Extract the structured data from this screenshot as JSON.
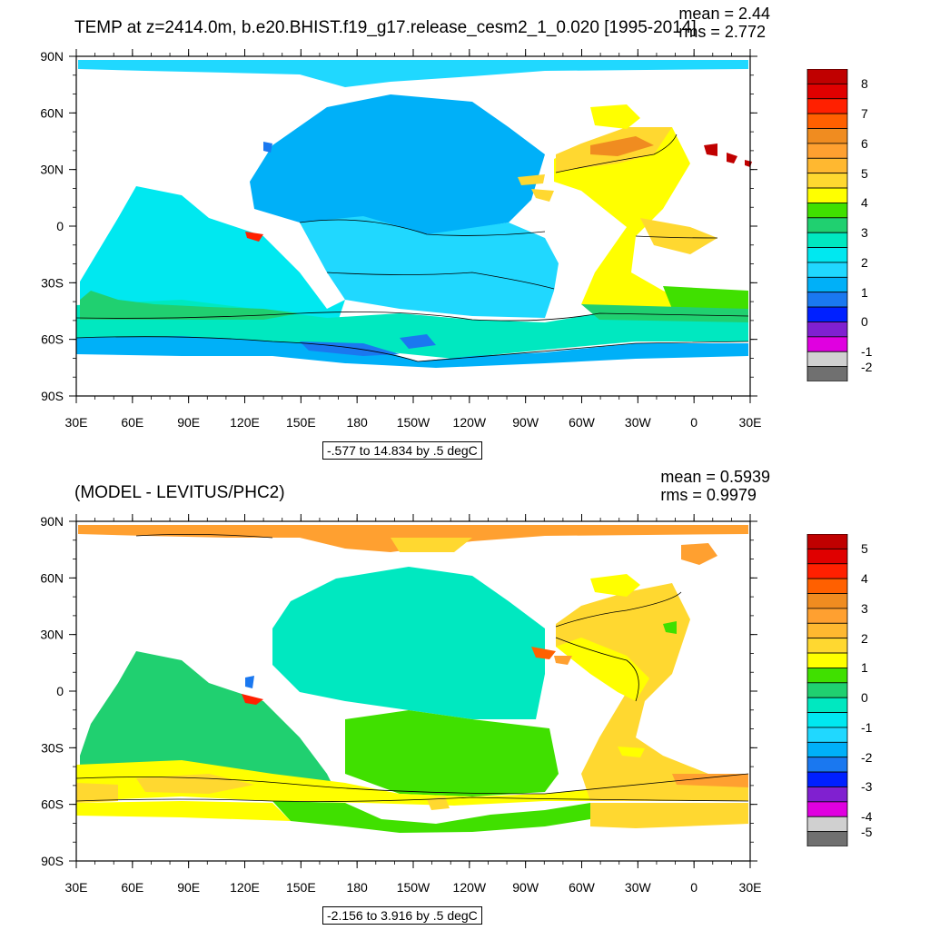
{
  "panels": [
    {
      "title": "TEMP at z=2414.0m, b.e20.BHIST.f19_g17.release_cesm2_1_0.020 [1995-2014]",
      "mean_text": "mean = 2.44",
      "rms_text": "rms = 2.772",
      "range_text": "-.577 to 14.834 by .5 degC",
      "colorbar_labels": [
        "8",
        "7",
        "6",
        "5",
        "4",
        "3",
        "2",
        "1",
        "0",
        "-1",
        "-2"
      ]
    },
    {
      "title": "(MODEL - LEVITUS/PHC2)",
      "mean_text": "mean = 0.5939",
      "rms_text": "rms = 0.9979",
      "range_text": "-2.156 to 3.916 by .5 degC",
      "colorbar_labels": [
        "5",
        "4",
        "3",
        "2",
        "1",
        "0",
        "-1",
        "-2",
        "-3",
        "-4",
        "-5"
      ]
    }
  ],
  "lat_labels": [
    "90N",
    "60N",
    "30N",
    "0",
    "30S",
    "60S",
    "90S"
  ],
  "lon_labels": [
    "30E",
    "60E",
    "90E",
    "120E",
    "150E",
    "180",
    "150W",
    "120W",
    "90W",
    "60W",
    "30W",
    "0",
    "30E"
  ],
  "colorbar_colors": [
    "#c00000",
    "#e00000",
    "#ff2000",
    "#ff6000",
    "#f08c20",
    "#ffa030",
    "#ffb830",
    "#ffd830",
    "#ffff00",
    "#40e000",
    "#20d070",
    "#00e8c0",
    "#00e8f0",
    "#20d8ff",
    "#00b0f8",
    "#1a78f0",
    "#0020ff",
    "#8020d0",
    "#e000e0",
    "#d0d0d0",
    "#707070"
  ],
  "ocean_colors": {
    "top": {
      "pacific": "#00b0f8",
      "south_band": "#20d8ff",
      "southern": "#00e8c0",
      "antarctic": "#00b0f8",
      "atlantic": "#ffff00",
      "n_atlantic": "#ffd830",
      "arctic": "#20d8ff"
    },
    "bottom": {
      "pacific": "#00e8c0",
      "south_band": "#40e000",
      "southern": "#ffff00",
      "antarctic": "#40e000",
      "atlantic": "#ffd830",
      "n_atlantic": "#ffd830",
      "arctic": "#ffa030"
    }
  }
}
